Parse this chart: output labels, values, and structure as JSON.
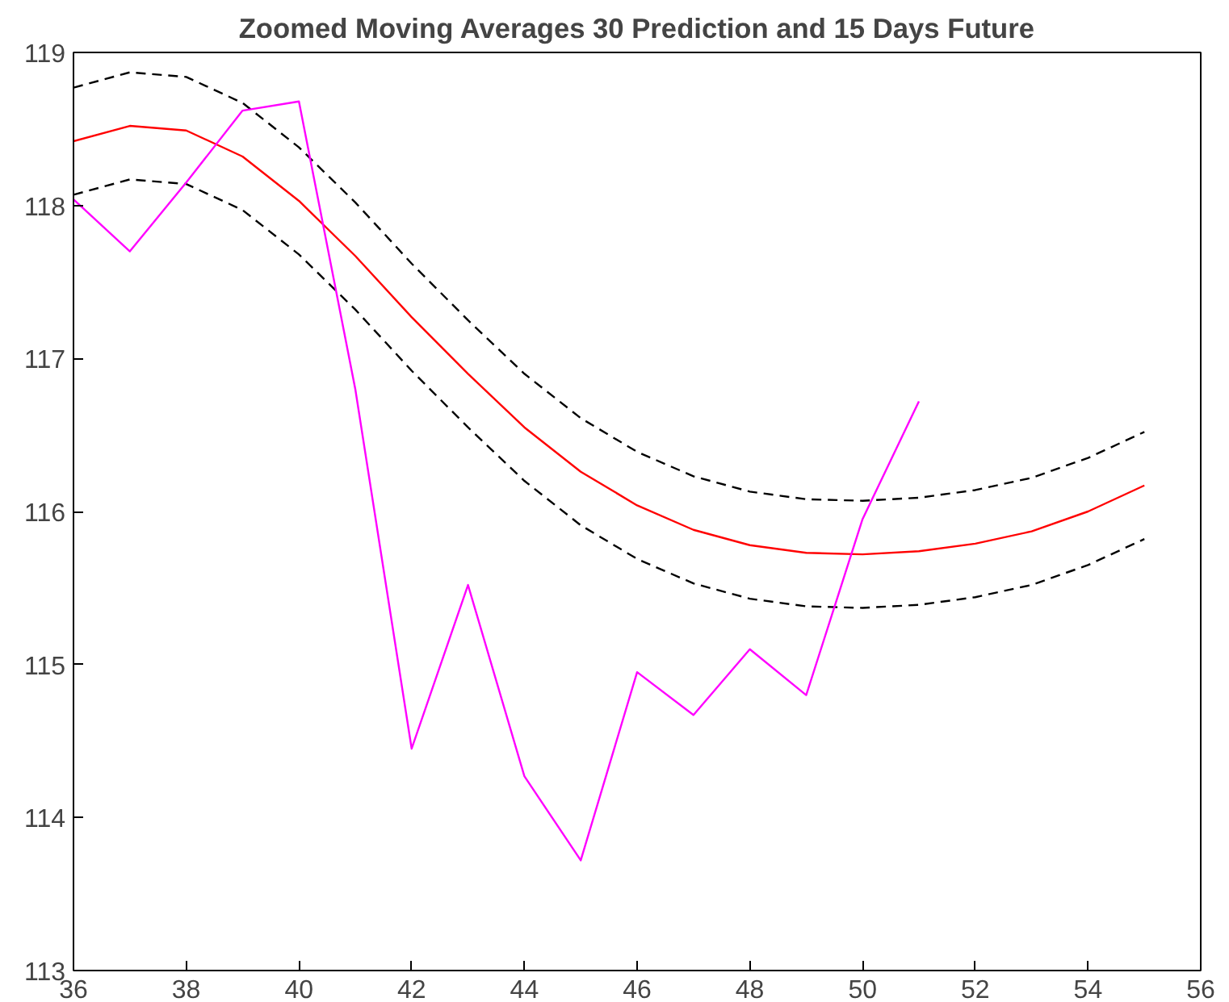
{
  "chart_data": {
    "type": "line",
    "title": "Zoomed Moving Averages 30 Prediction and 15 Days Future",
    "xlim": [
      36,
      56
    ],
    "ylim": [
      113,
      119
    ],
    "xticks": [
      36,
      38,
      40,
      42,
      44,
      46,
      48,
      50,
      52,
      54,
      56
    ],
    "yticks": [
      113,
      114,
      115,
      116,
      117,
      118,
      119
    ],
    "marker": "none",
    "series": [
      {
        "color": "#ff0000",
        "line_style": "solid",
        "x": [
          36,
          37,
          38,
          39,
          40,
          41,
          42,
          43,
          44,
          45,
          46,
          47,
          48,
          49,
          50,
          51,
          52,
          53,
          54,
          55
        ],
        "values": [
          118.42,
          118.52,
          118.49,
          118.32,
          118.03,
          117.67,
          117.27,
          116.9,
          116.55,
          116.26,
          116.04,
          115.88,
          115.78,
          115.73,
          115.72,
          115.74,
          115.79,
          115.87,
          116.0,
          116.17
        ]
      },
      {
        "color": "#000000",
        "line_style": "dashed",
        "x": [
          36,
          37,
          38,
          39,
          40,
          41,
          42,
          43,
          44,
          45,
          46,
          47,
          48,
          49,
          50,
          51,
          52,
          53,
          54,
          55
        ],
        "values": [
          118.77,
          118.87,
          118.84,
          118.67,
          118.38,
          118.02,
          117.62,
          117.25,
          116.9,
          116.61,
          116.39,
          116.23,
          116.13,
          116.08,
          116.07,
          116.09,
          116.14,
          116.22,
          116.35,
          116.52
        ]
      },
      {
        "color": "#000000",
        "line_style": "dashed",
        "x": [
          36,
          37,
          38,
          39,
          40,
          41,
          42,
          43,
          44,
          45,
          46,
          47,
          48,
          49,
          50,
          51,
          52,
          53,
          54,
          55
        ],
        "values": [
          118.07,
          118.17,
          118.14,
          117.97,
          117.68,
          117.32,
          116.92,
          116.55,
          116.2,
          115.91,
          115.69,
          115.53,
          115.43,
          115.38,
          115.37,
          115.39,
          115.44,
          115.52,
          115.65,
          115.82
        ]
      },
      {
        "color": "#ff00ff",
        "line_style": "solid",
        "x": [
          36,
          37,
          38,
          39,
          40,
          41,
          42,
          43,
          44,
          45,
          46,
          47,
          48,
          49,
          50,
          51
        ],
        "values": [
          118.04,
          117.7,
          118.15,
          118.62,
          118.68,
          116.8,
          114.45,
          115.52,
          114.27,
          113.72,
          114.95,
          114.67,
          115.1,
          114.8,
          115.95,
          116.72
        ]
      }
    ]
  }
}
